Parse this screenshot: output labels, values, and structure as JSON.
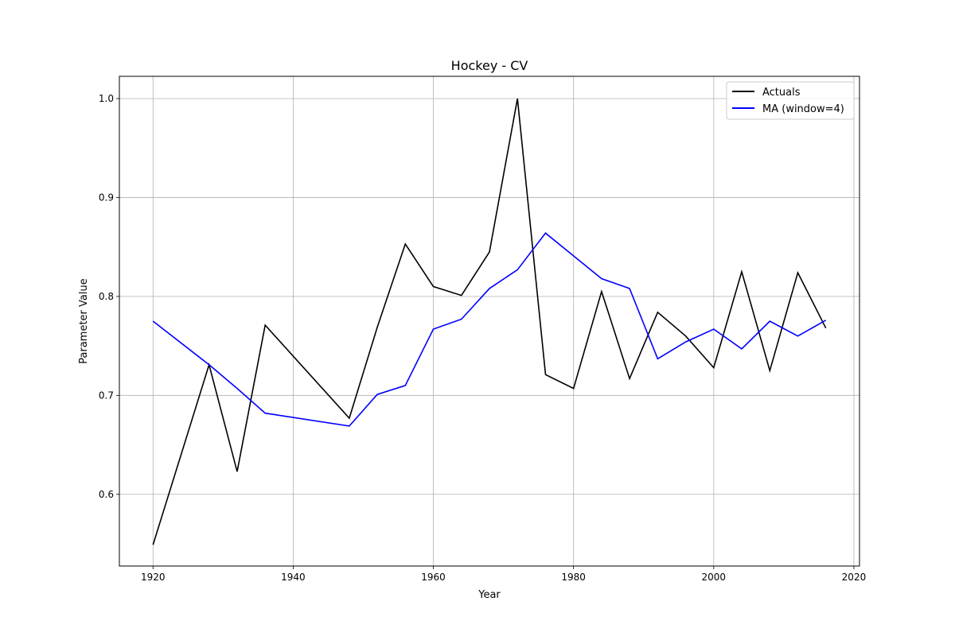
{
  "chart_data": {
    "type": "line",
    "title": "Hockey - CV",
    "xlabel": "Year",
    "ylabel": "Parameter Value",
    "xlim": [
      1915.2,
      2020.8
    ],
    "ylim": [
      0.5275,
      1.0225
    ],
    "x_ticks": [
      1920,
      1940,
      1960,
      1980,
      2000,
      2020
    ],
    "y_ticks": [
      0.6,
      0.7,
      0.8,
      0.9,
      1.0
    ],
    "x_tick_labels": [
      "1920",
      "1940",
      "1960",
      "1980",
      "2000",
      "2020"
    ],
    "y_tick_labels": [
      "0.6",
      "0.7",
      "0.8",
      "0.9",
      "1.0"
    ],
    "grid": true,
    "legend_position": "top-right",
    "series": [
      {
        "name": "Actuals",
        "color": "#000000",
        "x": [
          1920,
          1928,
          1932,
          1936,
          1948,
          1952,
          1956,
          1960,
          1964,
          1968,
          1972,
          1976,
          1980,
          1984,
          1988,
          1992,
          1996,
          2000,
          2004,
          2008,
          2012,
          2016
        ],
        "y": [
          0.549,
          0.731,
          0.623,
          0.771,
          0.677,
          0.769,
          0.853,
          0.81,
          0.801,
          0.845,
          1.0,
          0.721,
          0.707,
          0.805,
          0.717,
          0.784,
          0.76,
          0.728,
          0.825,
          0.725,
          0.824,
          0.768
        ]
      },
      {
        "name": "MA (window=4)",
        "color": "#0000ff",
        "x": [
          1920,
          1928,
          1932,
          1936,
          1948,
          1952,
          1956,
          1960,
          1964,
          1968,
          1972,
          1976,
          1980,
          1984,
          1988,
          1992,
          1996,
          2000,
          2004,
          2008,
          2012,
          2016
        ],
        "y": [
          0.775,
          0.731,
          0.707,
          0.682,
          0.669,
          0.701,
          0.71,
          0.767,
          0.777,
          0.808,
          0.827,
          0.864,
          0.841,
          0.818,
          0.808,
          0.737,
          0.754,
          0.767,
          0.747,
          0.775,
          0.76,
          0.776
        ]
      }
    ]
  }
}
